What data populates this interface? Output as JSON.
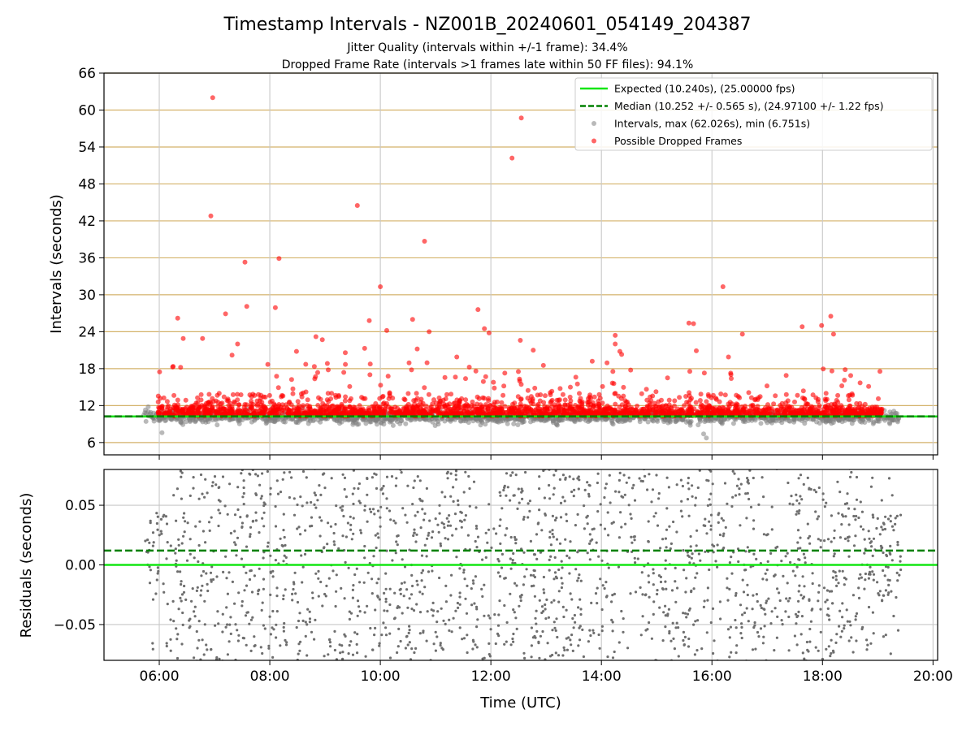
{
  "title": "Timestamp Intervals - NZ001B_20240601_054149_204387",
  "subtitle1": "Jitter Quality (intervals within +/-1 frame): 34.4%",
  "subtitle2": "Dropped Frame Rate (intervals >1 frames late within 50 FF files): 94.1%",
  "colors": {
    "expected": "#14e614",
    "median": "#008000",
    "intervals": "#808080",
    "dropped": "#ff0000",
    "hgrid_top": "#d4b26a",
    "grid": "#c8c8c8"
  },
  "chart_data": [
    {
      "type": "scatter",
      "panel": "top",
      "ylabel": "Intervals (seconds)",
      "xlim": [
        "05:00",
        "20:05"
      ],
      "ylim": [
        4,
        66
      ],
      "yticks": [
        "6",
        "12",
        "18",
        "24",
        "30",
        "36",
        "42",
        "48",
        "54",
        "60",
        "66"
      ],
      "xticks": [
        "06:00",
        "08:00",
        "10:00",
        "12:00",
        "14:00",
        "16:00",
        "18:00",
        "20:00"
      ],
      "grid": true,
      "legend_position": "top-right",
      "legend": [
        {
          "key": "expected",
          "label": "Expected (10.240s), (25.00000 fps)"
        },
        {
          "key": "median",
          "label": "Median (10.252 +/- 0.565 s), (24.97100 +/- 1.22 fps)"
        },
        {
          "key": "intervals",
          "label": "Intervals, max (62.026s), min (6.751s)"
        },
        {
          "key": "dropped",
          "label": "Possible Dropped Frames"
        }
      ],
      "expected_value": 10.24,
      "median_value": 10.252,
      "time_range": [
        "05:43",
        "19:25"
      ],
      "dropped_time_range": [
        "05:58",
        "19:05"
      ],
      "outliers": [
        {
          "t": "06:58",
          "v": 62.0
        },
        {
          "t": "12:33",
          "v": 58.7
        },
        {
          "t": "12:23",
          "v": 52.2
        },
        {
          "t": "09:35",
          "v": 44.5
        },
        {
          "t": "06:56",
          "v": 42.8
        },
        {
          "t": "10:48",
          "v": 38.7
        },
        {
          "t": "08:10",
          "v": 35.9
        },
        {
          "t": "07:33",
          "v": 35.3
        },
        {
          "t": "10:00",
          "v": 31.3
        },
        {
          "t": "16:12",
          "v": 31.3
        },
        {
          "t": "07:35",
          "v": 28.1
        },
        {
          "t": "08:06",
          "v": 27.9
        },
        {
          "t": "11:46",
          "v": 27.6
        },
        {
          "t": "07:12",
          "v": 26.9
        },
        {
          "t": "18:09",
          "v": 26.5
        },
        {
          "t": "06:20",
          "v": 26.2
        },
        {
          "t": "10:35",
          "v": 26.0
        },
        {
          "t": "09:48",
          "v": 25.8
        },
        {
          "t": "15:35",
          "v": 25.4
        },
        {
          "t": "15:40",
          "v": 25.3
        },
        {
          "t": "17:59",
          "v": 25.0
        },
        {
          "t": "17:38",
          "v": 24.8
        },
        {
          "t": "11:53",
          "v": 24.5
        },
        {
          "t": "10:07",
          "v": 24.2
        },
        {
          "t": "10:53",
          "v": 24.0
        },
        {
          "t": "11:58",
          "v": 23.8
        },
        {
          "t": "16:33",
          "v": 23.6
        },
        {
          "t": "18:12",
          "v": 23.6
        },
        {
          "t": "14:15",
          "v": 23.4
        },
        {
          "t": "08:50",
          "v": 23.2
        },
        {
          "t": "06:47",
          "v": 22.9
        },
        {
          "t": "06:26",
          "v": 22.9
        },
        {
          "t": "08:57",
          "v": 22.7
        },
        {
          "t": "12:32",
          "v": 22.6
        },
        {
          "t": "07:25",
          "v": 22.0
        },
        {
          "t": "14:15",
          "v": 22.0
        },
        {
          "t": "09:43",
          "v": 21.3
        },
        {
          "t": "10:40",
          "v": 21.2
        },
        {
          "t": "12:46",
          "v": 21.0
        },
        {
          "t": "08:29",
          "v": 20.8
        },
        {
          "t": "14:20",
          "v": 20.8
        },
        {
          "t": "15:43",
          "v": 20.9
        },
        {
          "t": "09:22",
          "v": 20.6
        },
        {
          "t": "07:19",
          "v": 20.2
        },
        {
          "t": "11:23",
          "v": 19.9
        },
        {
          "t": "16:18",
          "v": 19.9
        },
        {
          "t": "14:22",
          "v": 20.3
        },
        {
          "t": "13:50",
          "v": 19.2
        }
      ]
    },
    {
      "type": "scatter",
      "panel": "bottom",
      "xlabel": "Time (UTC)",
      "ylabel": "Residuals (seconds)",
      "xlim": [
        "05:00",
        "20:05"
      ],
      "ylim": [
        -0.08,
        0.08
      ],
      "yticks": [
        "0.05",
        "0.00",
        "−0.05"
      ],
      "xticks": [
        "06:00",
        "08:00",
        "10:00",
        "12:00",
        "14:00",
        "16:00",
        "18:00",
        "20:00"
      ],
      "grid": true,
      "expected_value": 0.0,
      "median_value": 0.012,
      "time_range": [
        "05:43",
        "19:25"
      ]
    }
  ]
}
